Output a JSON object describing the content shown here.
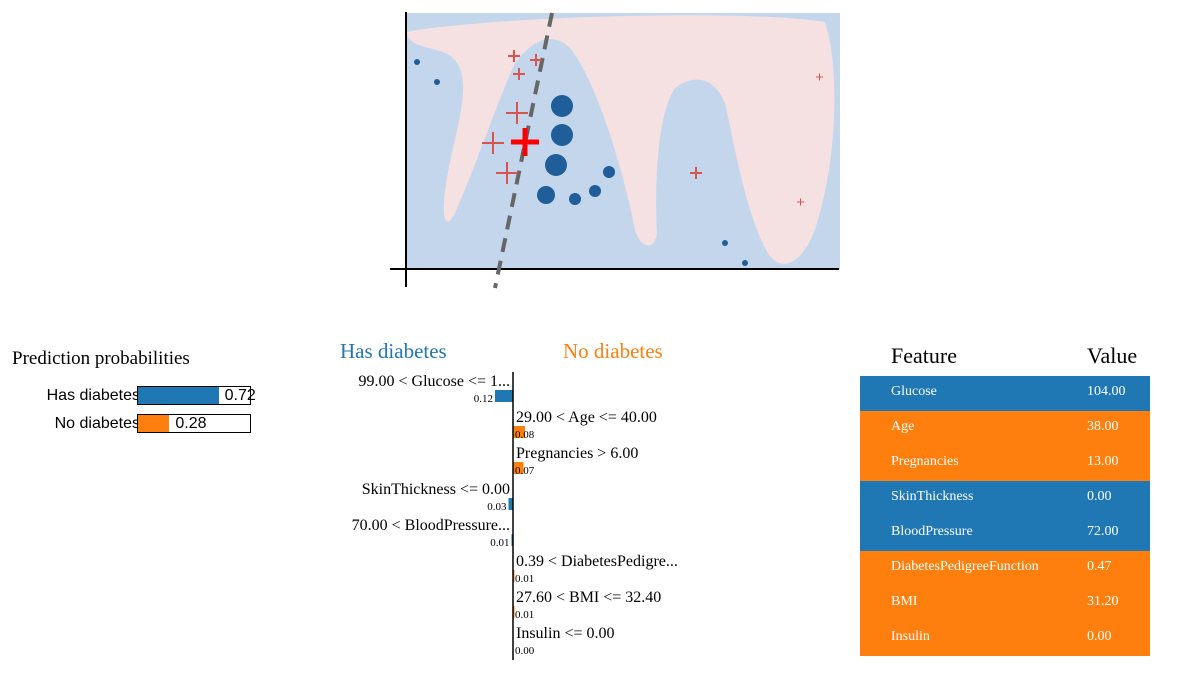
{
  "prediction": {
    "title": "Prediction probabilities",
    "items": [
      {
        "label": "Has diabetes",
        "value": 0.72,
        "text": "0.72",
        "color": "#1f77b4"
      },
      {
        "label": "No diabetes",
        "value": 0.28,
        "text": "0.28",
        "color": "#ff7f0e"
      }
    ]
  },
  "explanation": {
    "negative_class": "Has diabetes",
    "positive_class": "No diabetes",
    "neg_color": "#1f77b4",
    "pos_color": "#ff7f0e"
  },
  "chart_data": {
    "type": "bar",
    "orientation": "horizontal",
    "categories": [
      "99.00 < Glucose <= 1...",
      "29.00 < Age <= 40.00",
      "Pregnancies > 6.00",
      "SkinThickness <= 0.00",
      "70.00 < BloodPressure...",
      "0.39 < DiabetesPedigre...",
      "27.60 < BMI <= 32.40",
      "Insulin <= 0.00"
    ],
    "values": [
      -0.12,
      0.08,
      0.07,
      -0.03,
      -0.01,
      0.01,
      0.01,
      0.0
    ],
    "value_labels": [
      "0.12",
      "0.08",
      "0.07",
      "0.03",
      "0.01",
      "0.01",
      "0.01",
      "0.00"
    ],
    "legend": [
      "Has diabetes",
      "No diabetes"
    ]
  },
  "feature_table": {
    "header": {
      "feature": "Feature",
      "value": "Value"
    },
    "rows": [
      {
        "feature": "Glucose",
        "value": "104.00",
        "color": "#1f77b4"
      },
      {
        "feature": "Age",
        "value": "38.00",
        "color": "#ff7f0e"
      },
      {
        "feature": "Pregnancies",
        "value": "13.00",
        "color": "#ff7f0e"
      },
      {
        "feature": "SkinThickness",
        "value": "0.00",
        "color": "#1f77b4"
      },
      {
        "feature": "BloodPressure",
        "value": "72.00",
        "color": "#1f77b4"
      },
      {
        "feature": "DiabetesPedigreeFunction",
        "value": "0.47",
        "color": "#ff7f0e"
      },
      {
        "feature": "BMI",
        "value": "31.20",
        "color": "#ff7f0e"
      },
      {
        "feature": "Insulin",
        "value": "0.00",
        "color": "#ff7f0e"
      }
    ]
  }
}
